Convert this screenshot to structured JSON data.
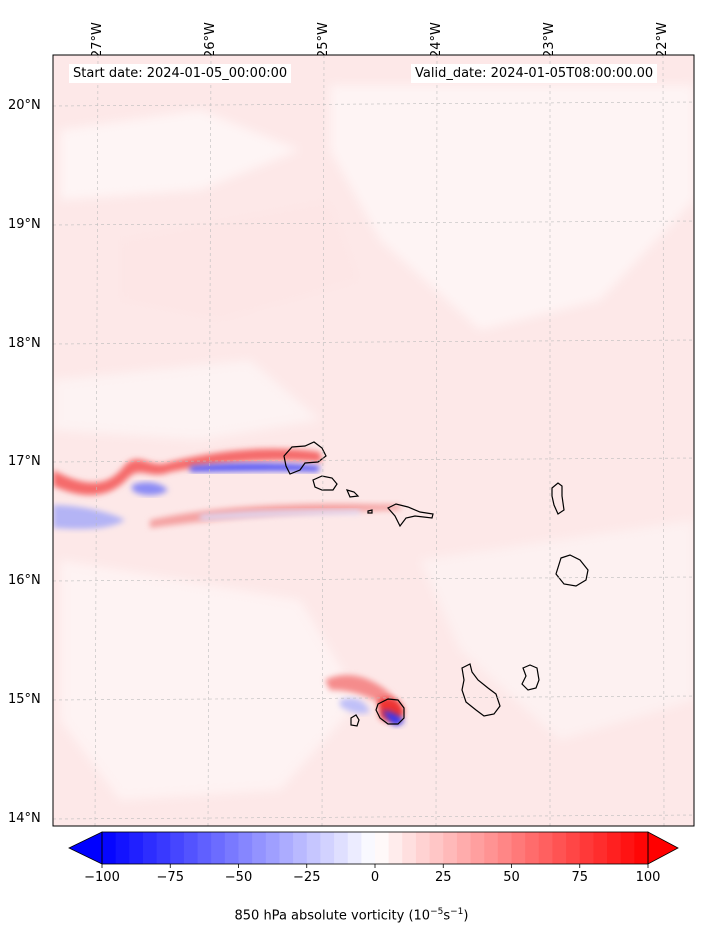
{
  "header": {
    "start_date": "Start date: 2024-01-05_00:00:00",
    "valid_date": "Valid_date: 2024-01-05T08:00:00.00"
  },
  "map": {
    "longitude_labels": [
      "27°W",
      "26°W",
      "25°W",
      "24°W",
      "23°W",
      "22°W"
    ],
    "latitude_labels": [
      "20°N",
      "19°N",
      "18°N",
      "17°N",
      "16°N",
      "15°N",
      "14°N"
    ],
    "field": "850 hPa absolute vorticity",
    "colormap": "bwr",
    "background_color": "#fdeeee"
  },
  "colorbar": {
    "ticks": [
      "−100",
      "−75",
      "−50",
      "−25",
      "0",
      "25",
      "50",
      "75",
      "100"
    ],
    "label": "850 hPa absolute vorticity (10",
    "label_exp1": "−5",
    "label_mid": "s",
    "label_exp2": "−1",
    "label_end": ")",
    "min": -100,
    "max": 100,
    "extend": "both"
  }
}
